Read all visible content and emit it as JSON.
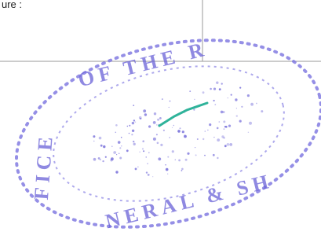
{
  "corner_text": "ure :",
  "stamp": {
    "top_text": "OF THE R",
    "left_text": "FICE",
    "bottom_text": "NERAL & SH"
  }
}
